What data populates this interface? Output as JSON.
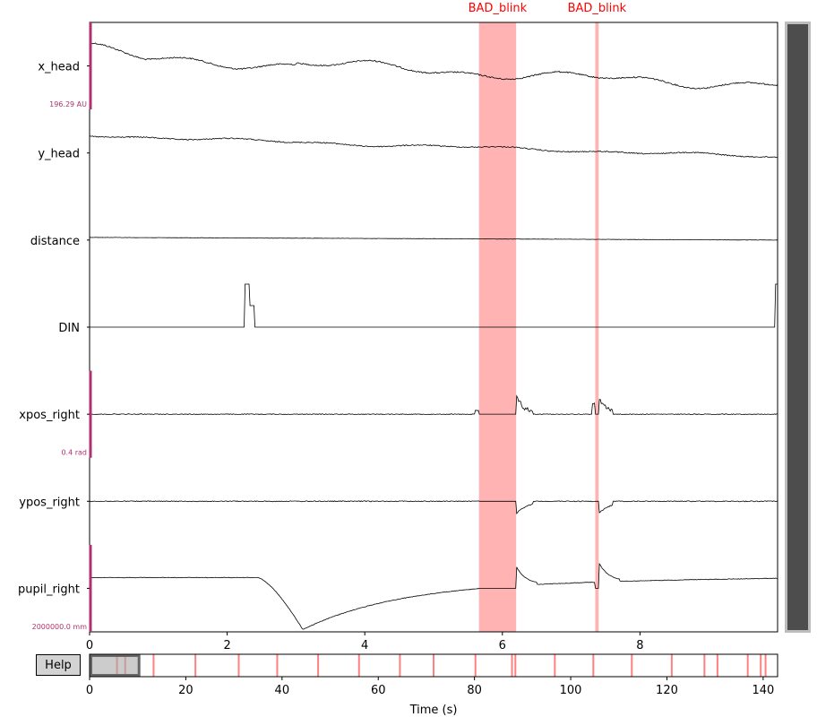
{
  "help_label": "Help",
  "chart_data": {
    "type": "line",
    "xlabel": "Time (s)",
    "xlim": [
      0,
      10
    ],
    "xticks": [
      0,
      2,
      4,
      6,
      8
    ],
    "channels": [
      {
        "name": "x_head",
        "scale_label": "196.29 AU",
        "has_scale_bar": true
      },
      {
        "name": "y_head",
        "scale_label": "",
        "has_scale_bar": false
      },
      {
        "name": "distance",
        "scale_label": "",
        "has_scale_bar": false
      },
      {
        "name": "DIN",
        "scale_label": "",
        "has_scale_bar": false
      },
      {
        "name": "xpos_right",
        "scale_label": "0.4 rad",
        "has_scale_bar": true
      },
      {
        "name": "ypos_right",
        "scale_label": "",
        "has_scale_bar": false
      },
      {
        "name": "pupil_right",
        "scale_label": "2000000.0 mm",
        "has_scale_bar": true
      }
    ],
    "annotations": [
      {
        "label": "BAD_blink",
        "onset": 5.66,
        "offset": 6.2
      },
      {
        "label": "BAD_blink",
        "onset": 7.35,
        "offset": 7.4
      }
    ],
    "overview": {
      "xlabel": "Time (s)",
      "xlim": [
        0,
        143
      ],
      "xticks": [
        0,
        20,
        40,
        60,
        80,
        100,
        120,
        140
      ],
      "view_window": [
        0,
        10
      ],
      "annotation_times": [
        5.7,
        7.4,
        13.3,
        22,
        31,
        39,
        47.5,
        56,
        64.5,
        71.5,
        80.2,
        87.8,
        88.5,
        96.7,
        104.7,
        112.7,
        121,
        127.8,
        130.5,
        136.8,
        139.5,
        140.5
      ]
    },
    "colors": {
      "annotation": "#ff8080",
      "trace": "#000000",
      "scale_bar": "#b03070",
      "scrollbar": "#4d4d4d"
    }
  }
}
